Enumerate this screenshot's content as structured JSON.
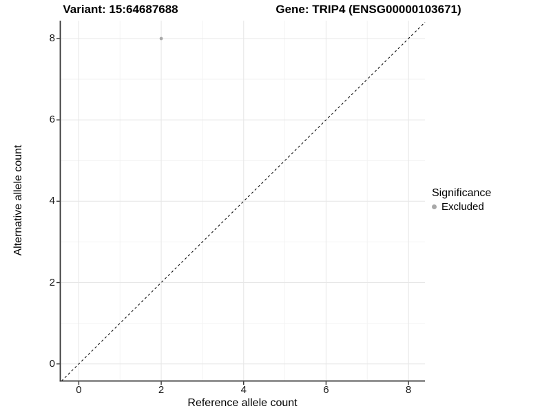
{
  "chart_data": {
    "type": "scatter",
    "titles": {
      "left": "Variant: 15:64687688",
      "right": "Gene: TRIP4 (ENSG00000103671)"
    },
    "xlabel": "Reference allele count",
    "ylabel": "Alternative allele count",
    "xlim": [
      -0.45,
      8.4
    ],
    "ylim": [
      -0.42,
      8.44
    ],
    "x_ticks": [
      0,
      2,
      4,
      6,
      8
    ],
    "y_ticks": [
      0,
      2,
      4,
      6,
      8
    ],
    "x_minor_ticks": [
      1,
      3,
      5,
      7
    ],
    "y_minor_ticks": [
      1,
      3,
      5,
      7
    ],
    "grid": "on",
    "points": [
      {
        "x": 2,
        "y": 8,
        "significance": "Excluded"
      }
    ],
    "identity_line": {
      "slope": 1,
      "intercept": 0,
      "style": "dashed"
    },
    "legend": {
      "title": "Significance",
      "position": "right",
      "items": [
        {
          "label": "Excluded",
          "color": "#a8a8a8"
        }
      ]
    },
    "colors": {
      "background": "#ffffff",
      "point": "#a8a8a8",
      "grid_major": "#e7e7e7",
      "grid_minor": "#f2f2f2",
      "axis_line": "#333333",
      "tick_mark": "#333333",
      "tick_label": "#1a1a1a",
      "identity_line": "#111111"
    }
  }
}
